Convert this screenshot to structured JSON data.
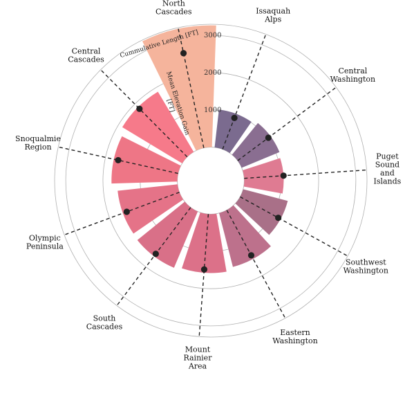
{
  "chart_data": {
    "type": "bar",
    "polar": true,
    "categories": [
      "Issaquah\nAlps",
      "Central\nWashington",
      "Puget\nSound\nand\nIslands",
      "Southwest\nWashington",
      "Eastern\nWashington",
      "Mount\nRainier\nArea",
      "South\nCascades",
      "Olympic\nPeninsula",
      "Snoqualmie\nRegion",
      "Central\nCascades",
      "North\nCascades"
    ],
    "series": [
      {
        "name": "Cumulative Length [FT]",
        "values": [
          1020,
          1100,
          1060,
          1240,
          1490,
          1580,
          1640,
          1620,
          1770,
          1880,
          3270
        ],
        "colors": [
          "#7b6b8f",
          "#8a6e91",
          "#df7b92",
          "#a97088",
          "#bd718c",
          "#dc7189",
          "#d97088",
          "#e57388",
          "#ee7686",
          "#f67a8a",
          "#f5b49c"
        ]
      },
      {
        "name": "Mean Elevation Gain [FT]",
        "values": [
          900,
          1030,
          1060,
          1170,
          1380,
          1490,
          1560,
          1510,
          1650,
          1820,
          2600
        ]
      }
    ],
    "axis_labels": [
      "Cummulative Length [FT]",
      "Mean Elevation Gain\n[FT]"
    ],
    "rticks": [
      "1000",
      "2000",
      "3000"
    ],
    "rlim": [
      -900,
      3300
    ],
    "grid": true,
    "legend": "none",
    "colors": {
      "marker": "#222222",
      "grid": "#b0b0b0",
      "line": "#222222"
    }
  }
}
